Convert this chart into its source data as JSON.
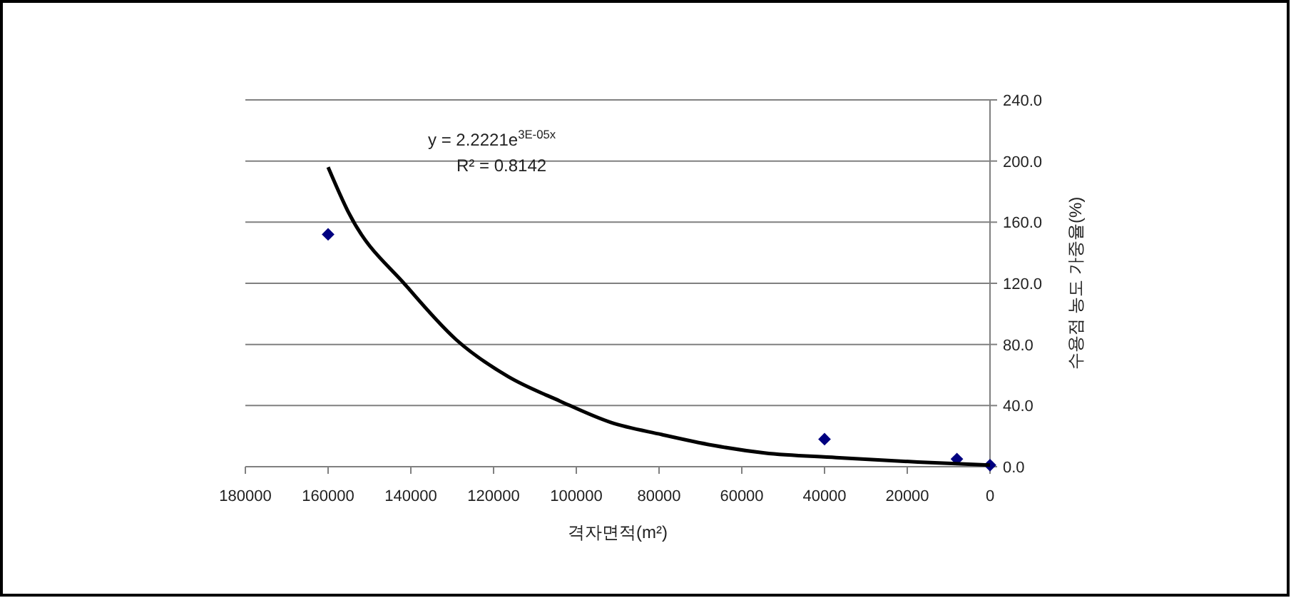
{
  "chart_data": {
    "type": "scatter",
    "xlabel": "격자면적(m²)",
    "ylabel": "수용점 농도 가중율(%)",
    "xlim": [
      180000,
      0
    ],
    "xticks": [
      180000,
      160000,
      140000,
      120000,
      100000,
      80000,
      60000,
      40000,
      20000,
      0
    ],
    "ylim": [
      0,
      240
    ],
    "yticks": [
      {
        "value": 0,
        "label": "0.0"
      },
      {
        "value": 40,
        "label": "40.0"
      },
      {
        "value": 80,
        "label": "80.0"
      },
      {
        "value": 120,
        "label": "120.0"
      },
      {
        "value": 160,
        "label": "160.0"
      },
      {
        "value": 200,
        "label": "200.0"
      },
      {
        "value": 240,
        "label": "240.0"
      }
    ],
    "grid": "y",
    "marker": "diamond",
    "series": [
      {
        "color": "#000080",
        "x": [
          160000,
          40000,
          8000,
          0
        ],
        "values": [
          152,
          18,
          5,
          1
        ]
      },
      {
        "type": "line",
        "color": "#000000",
        "line_style": "solid",
        "marker": "none",
        "x": [
          160000,
          155000,
          141000,
          129000,
          116500,
          104000,
          91700,
          79300,
          67000,
          54500,
          37200,
          17400,
          0
        ],
        "values": [
          196,
          166,
          118,
          83,
          59,
          43,
          29,
          21,
          14,
          9,
          6,
          3,
          1
        ]
      }
    ],
    "annotations": [
      "y = 2.2221e$^{3E-05x}$",
      "R² = 0.8142"
    ]
  }
}
